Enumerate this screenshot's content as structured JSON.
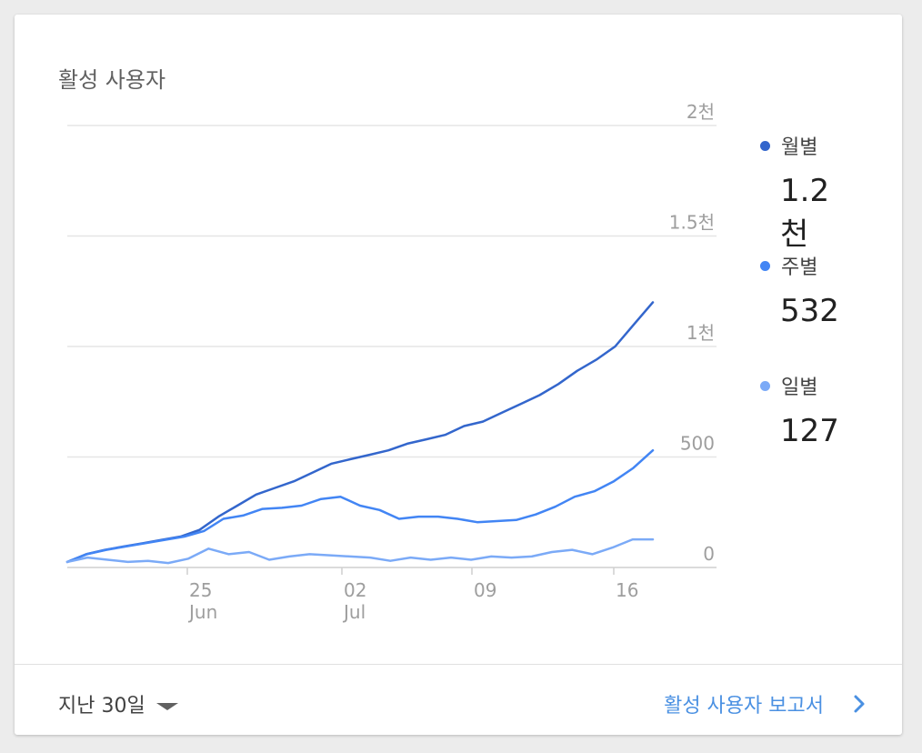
{
  "card": {
    "title": "활성 사용자"
  },
  "chart_data": {
    "type": "line",
    "x_labels": [
      {
        "day": "25",
        "month": "Jun"
      },
      {
        "day": "02",
        "month": "Jul"
      },
      {
        "day": "09",
        "month": ""
      },
      {
        "day": "16",
        "month": ""
      }
    ],
    "y_ticks": [
      "2천",
      "1.5천",
      "1천",
      "500",
      "0"
    ],
    "y_tick_values": [
      2000,
      1500,
      1000,
      500,
      0
    ],
    "ylim": [
      0,
      2000
    ],
    "grid": true,
    "legend_position": "right",
    "series": [
      {
        "name": "월별",
        "display_value": "1.2천",
        "color": "#3366cc",
        "values": [
          25,
          60,
          80,
          95,
          110,
          125,
          140,
          170,
          230,
          280,
          330,
          360,
          390,
          430,
          470,
          490,
          510,
          530,
          560,
          580,
          600,
          640,
          660,
          700,
          740,
          780,
          830,
          890,
          940,
          1000,
          1100,
          1200
        ]
      },
      {
        "name": "주별",
        "display_value": "532",
        "color": "#4285f4",
        "values": [
          25,
          60,
          80,
          95,
          110,
          125,
          140,
          165,
          220,
          235,
          265,
          270,
          280,
          310,
          320,
          280,
          260,
          220,
          230,
          230,
          220,
          205,
          210,
          215,
          240,
          275,
          320,
          345,
          390,
          450,
          530
        ]
      },
      {
        "name": "일별",
        "display_value": "127",
        "color": "#7baaf7",
        "values": [
          25,
          45,
          35,
          25,
          30,
          20,
          40,
          85,
          60,
          70,
          35,
          50,
          60,
          55,
          50,
          45,
          30,
          45,
          35,
          45,
          35,
          50,
          45,
          50,
          70,
          80,
          60,
          90,
          127,
          127
        ]
      }
    ]
  },
  "footer": {
    "date_range": "지난 30일",
    "report_link": "활성 사용자 보고서"
  }
}
